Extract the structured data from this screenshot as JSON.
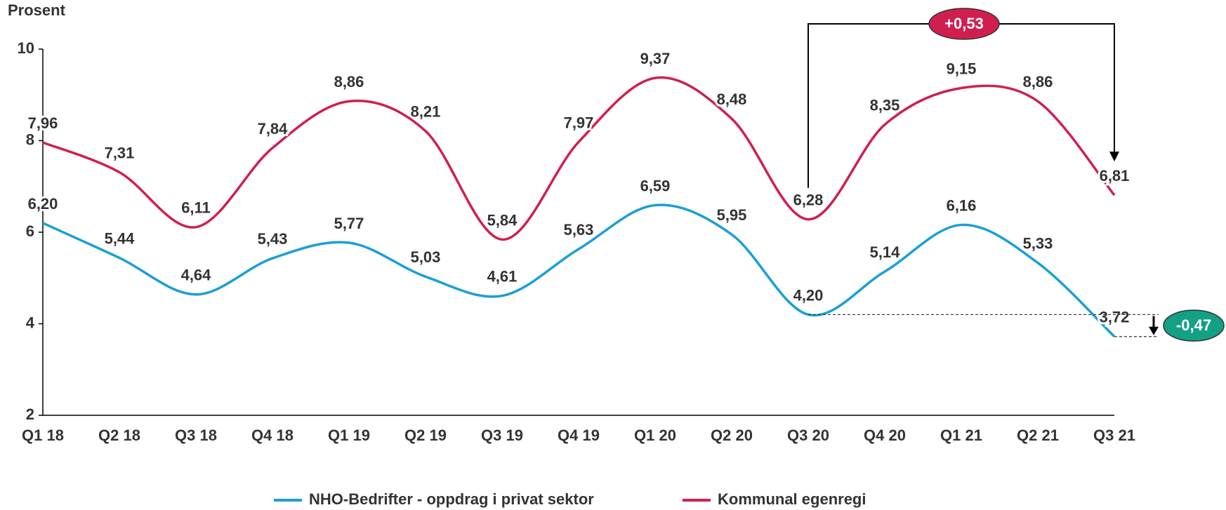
{
  "chart_data": {
    "type": "line",
    "y_label": "Prosent",
    "categories": [
      "Q1 18",
      "Q2 18",
      "Q3 18",
      "Q4 18",
      "Q1 19",
      "Q2 19",
      "Q3 19",
      "Q4 19",
      "Q1 20",
      "Q2 20",
      "Q3 20",
      "Q4 20",
      "Q1 21",
      "Q2 21",
      "Q3 21"
    ],
    "series": [
      {
        "name": "NHO-Bedrifter - oppdrag i privat sektor",
        "color": "#1a9fd6",
        "values": [
          6.2,
          5.44,
          4.64,
          5.43,
          5.77,
          5.03,
          4.61,
          5.63,
          6.59,
          5.95,
          4.2,
          5.14,
          6.16,
          5.33,
          3.72
        ],
        "value_labels": [
          "6,20",
          "5,44",
          "4,64",
          "5,43",
          "5,77",
          "5,03",
          "4,61",
          "5,63",
          "6,59",
          "5,95",
          "4,20",
          "5,14",
          "6,16",
          "5,33",
          "3,72"
        ]
      },
      {
        "name": "Kommunal egenregi",
        "color": "#d01f4f",
        "values": [
          7.96,
          7.31,
          6.11,
          7.84,
          8.86,
          8.21,
          5.84,
          7.97,
          9.37,
          8.48,
          6.28,
          8.35,
          9.15,
          8.86,
          6.81
        ],
        "value_labels": [
          "7,96",
          "7,31",
          "6,11",
          "7,84",
          "8,86",
          "8,21",
          "5,84",
          "7,97",
          "9,37",
          "8,48",
          "6,28",
          "8,35",
          "9,15",
          "8,86",
          "6,81"
        ]
      }
    ],
    "ylim": [
      2,
      10
    ],
    "yticks": [
      2,
      4,
      6,
      8,
      10
    ],
    "annotations": [
      {
        "text": "+0,53",
        "color": "#d01f4f"
      },
      {
        "text": "-0,47",
        "color": "#13a085"
      }
    ],
    "legend": "bottom"
  }
}
